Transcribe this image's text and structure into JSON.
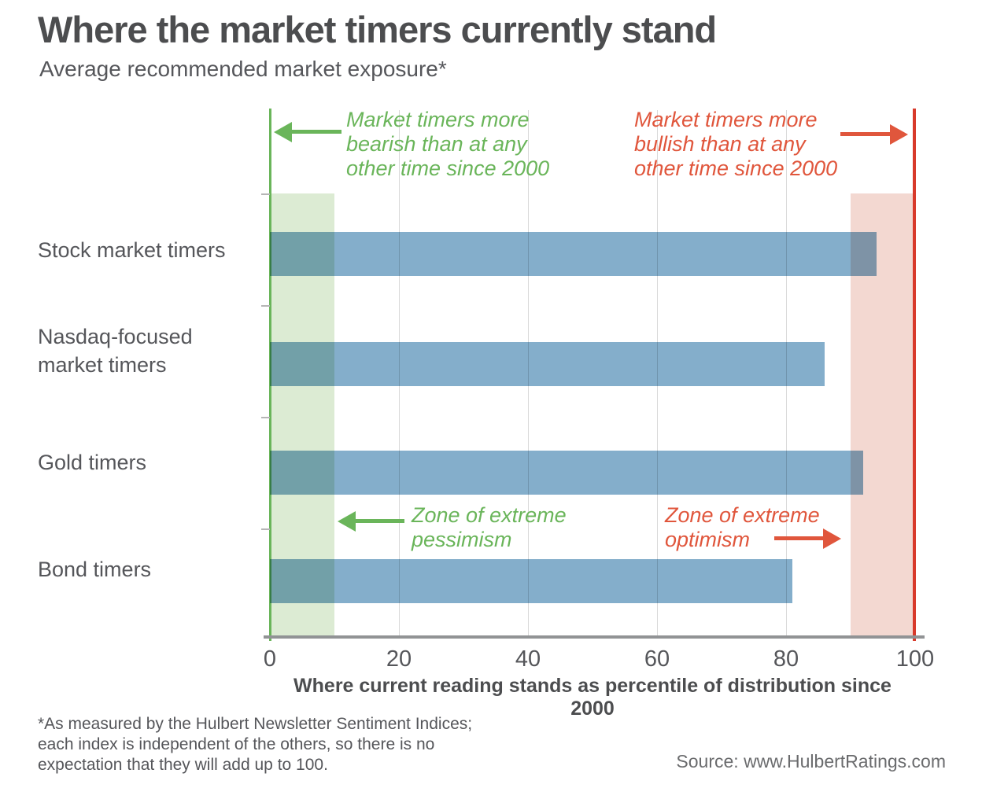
{
  "title": "Where the market timers currently stand",
  "subtitle": "Average recommended market exposure*",
  "chart_data": {
    "type": "bar",
    "orientation": "horizontal",
    "categories": [
      "Stock market timers",
      "Nasdaq-focused market timers",
      "Gold timers",
      "Bond timers"
    ],
    "values": [
      94,
      86,
      92,
      81
    ],
    "xlabel": "Where current reading stands as percentile of distribution since 2000",
    "x_ticks": [
      0,
      20,
      40,
      60,
      80,
      100
    ],
    "xlim": [
      0,
      100
    ],
    "grid": "vertical gridlines at 20, 40, 60, 80",
    "legend": "none",
    "zones": [
      {
        "id": "pessimism",
        "range": [
          0,
          10
        ]
      },
      {
        "id": "optimism",
        "range": [
          90,
          100
        ]
      }
    ],
    "reference_lines": [
      {
        "value": 0
      },
      {
        "value": 100
      }
    ]
  },
  "annotations": {
    "bearish_top": "Market timers more\nbearish than at any\nother time since 2000",
    "bullish_top": "Market timers more\nbullish than at any\nother time since 2000",
    "pessimism_zone": "Zone of extreme\npessimism",
    "optimism_zone": "Zone of extreme\noptimism"
  },
  "footnote": "*As measured by the Hulbert Newsletter Sentiment Indices;\neach index is independent of the others, so there is no\nexpectation that they will add up to 100.",
  "source": "Source: www.HulbertRatings.com",
  "colors": {
    "bar": "#84aecb",
    "pessimism_band": "#dcebd3",
    "optimism_band": "#f3d8d1",
    "green_accent": "#6ab55a",
    "red_line": "#d83a2b",
    "red_accent": "#e0563c",
    "gridline": "#d9d9d9",
    "axis": "#919395",
    "text_dark": "#4c4d4f",
    "text_gray": "#55565a"
  }
}
